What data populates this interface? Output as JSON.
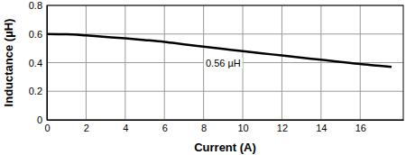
{
  "chart_data": {
    "type": "line",
    "x_label": "Current (A)",
    "y_label": "Inductance (µH)",
    "x": [
      0,
      1,
      2,
      3,
      4,
      5,
      6,
      7,
      8,
      9,
      10,
      11,
      12,
      13,
      14,
      15,
      16,
      17,
      17.6
    ],
    "values": [
      0.6,
      0.598,
      0.59,
      0.58,
      0.57,
      0.558,
      0.545,
      0.528,
      0.512,
      0.496,
      0.48,
      0.465,
      0.45,
      0.435,
      0.42,
      0.405,
      0.39,
      0.378,
      0.37
    ],
    "color": "#000000",
    "xlim": [
      0,
      18.2
    ],
    "ylim": [
      0,
      0.8
    ],
    "xticks": [
      0,
      2,
      4,
      6,
      8,
      10,
      12,
      14,
      16
    ],
    "yticks": [
      0,
      0.2,
      0.4,
      0.6,
      0.8
    ],
    "grid": true,
    "annotations": [
      {
        "text": "0.56 µH",
        "x": 9.0,
        "y": 0.39
      }
    ]
  }
}
